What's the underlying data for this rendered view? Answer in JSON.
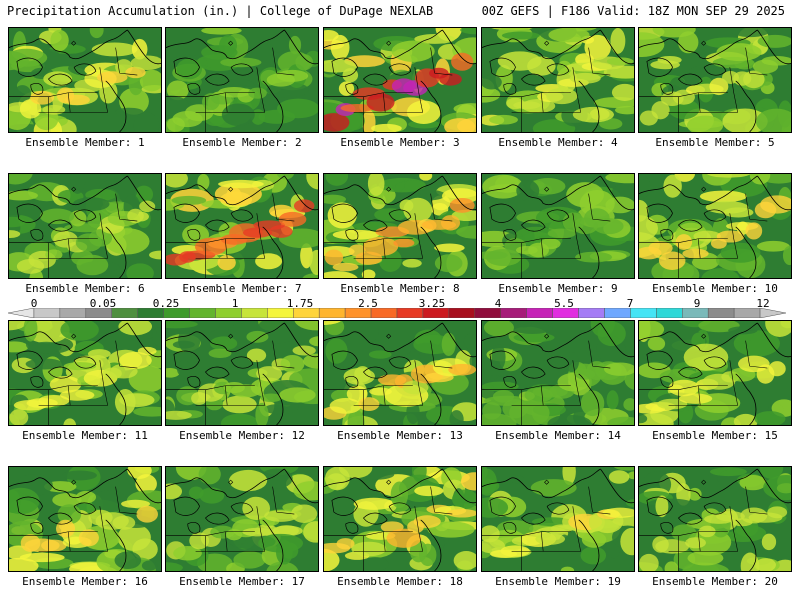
{
  "header": {
    "left": "Precipitation Accumulation (in.) | College of DuPage NEXLAB",
    "right": "00Z GEFS | F186 Valid: 18Z MON SEP 29 2025"
  },
  "members": [
    {
      "label": "Ensemble Member: 1",
      "rain": 0.55,
      "peak": 1.2
    },
    {
      "label": "Ensemble Member: 2",
      "rain": 0.35,
      "peak": 0.6
    },
    {
      "label": "Ensemble Member: 3",
      "rain": 0.75,
      "peak": 4.5
    },
    {
      "label": "Ensemble Member: 4",
      "rain": 0.55,
      "peak": 1.0
    },
    {
      "label": "Ensemble Member: 5",
      "rain": 0.5,
      "peak": 1.0
    },
    {
      "label": "Ensemble Member: 6",
      "rain": 0.45,
      "peak": 0.8
    },
    {
      "label": "Ensemble Member: 7",
      "rain": 0.7,
      "peak": 3.0
    },
    {
      "label": "Ensemble Member: 8",
      "rain": 0.65,
      "peak": 2.0
    },
    {
      "label": "Ensemble Member: 9",
      "rain": 0.35,
      "peak": 0.6
    },
    {
      "label": "Ensemble Member: 10",
      "rain": 0.55,
      "peak": 1.3
    },
    {
      "label": "Ensemble Member: 11",
      "rain": 0.5,
      "peak": 1.0
    },
    {
      "label": "Ensemble Member: 12",
      "rain": 0.45,
      "peak": 0.8
    },
    {
      "label": "Ensemble Member: 13",
      "rain": 0.55,
      "peak": 1.5
    },
    {
      "label": "Ensemble Member: 14",
      "rain": 0.35,
      "peak": 0.6
    },
    {
      "label": "Ensemble Member: 15",
      "rain": 0.5,
      "peak": 1.0
    },
    {
      "label": "Ensemble Member: 16",
      "rain": 0.55,
      "peak": 1.2
    },
    {
      "label": "Ensemble Member: 17",
      "rain": 0.45,
      "peak": 0.8
    },
    {
      "label": "Ensemble Member: 18",
      "rain": 0.65,
      "peak": 1.5
    },
    {
      "label": "Ensemble Member: 19",
      "rain": 0.5,
      "peak": 1.2
    },
    {
      "label": "Ensemble Member: 20",
      "rain": 0.45,
      "peak": 0.8
    }
  ],
  "colorbar": {
    "labels": [
      "0",
      "0.05",
      "0.25",
      "1",
      "1.75",
      "2.5",
      "3.25",
      "4",
      "5.5",
      "7",
      "9",
      "12"
    ],
    "colors": [
      "#e6e6e6",
      "#c8c8c8",
      "#a9a9a9",
      "#8c8c8c",
      "#4f8f3f",
      "#2e7d32",
      "#3f9b2c",
      "#63b42d",
      "#8fcf2e",
      "#c7e43a",
      "#f4f53c",
      "#ffd43a",
      "#ffb52e",
      "#ff922a",
      "#f86a26",
      "#e73a24",
      "#cc1a20",
      "#a80f1e",
      "#900d3d",
      "#a61c79",
      "#c623b7",
      "#e12ee0",
      "#a57cf5",
      "#6fa8ff",
      "#45e4f5",
      "#2fd8d8",
      "#7ab9b9",
      "#8c8c8c",
      "#a8a8a8",
      "#c8c8c8"
    ]
  }
}
